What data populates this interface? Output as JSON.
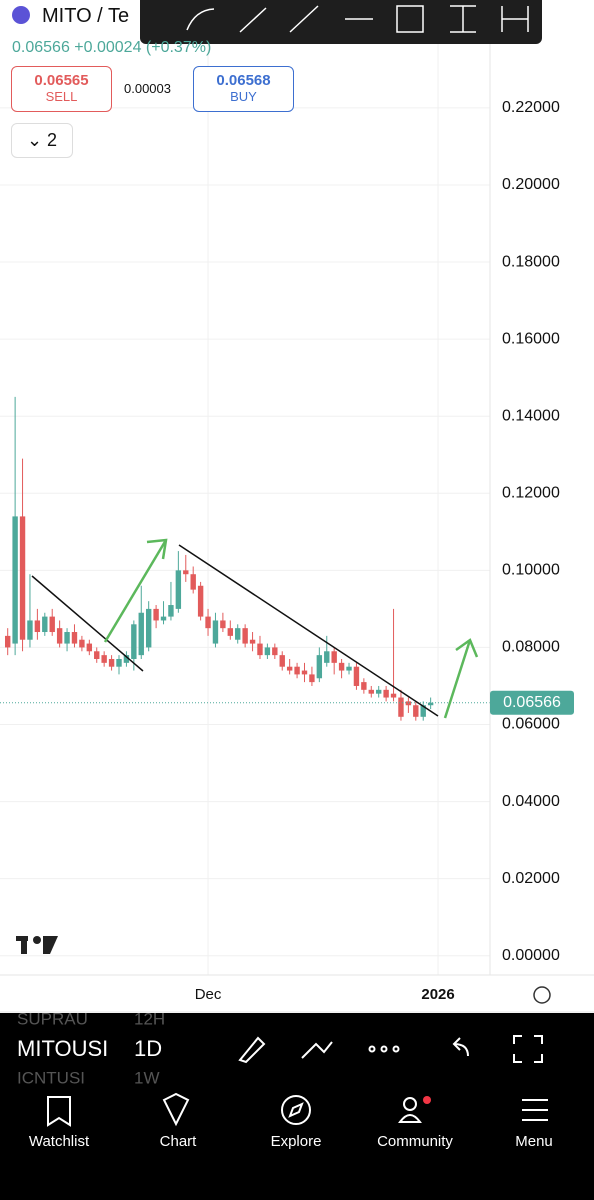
{
  "header": {
    "symbol": "MITO / Te",
    "change": "0.06566 +0.00024 (+0.37%)"
  },
  "quote": {
    "sell_price": "0.06565",
    "sell_label": "SELL",
    "spread": "0.00003",
    "buy_price": "0.06568",
    "buy_label": "BUY",
    "layout_count": "2"
  },
  "chart_data": {
    "type": "candlestick",
    "categories": [
      null,
      null,
      null,
      null,
      null,
      null,
      null,
      null,
      null,
      null,
      null,
      null,
      null,
      null,
      null,
      null,
      null,
      null,
      null,
      null,
      null,
      null,
      null,
      null,
      null,
      null,
      null,
      "Dec",
      null,
      null,
      null,
      null,
      null,
      null,
      null,
      null,
      null,
      null,
      null,
      null,
      null,
      null,
      null,
      null,
      null,
      null,
      null,
      null,
      null,
      null,
      null,
      null,
      null,
      null,
      null,
      null,
      null,
      null,
      "2026"
    ],
    "open": [
      0.083,
      0.081,
      0.114,
      0.082,
      0.087,
      0.084,
      0.088,
      0.085,
      0.081,
      0.084,
      0.082,
      0.081,
      0.079,
      0.078,
      0.077,
      0.075,
      0.076,
      0.077,
      0.078,
      0.08,
      0.09,
      0.087,
      0.088,
      0.09,
      0.1,
      0.099,
      0.096,
      0.088,
      0.081,
      0.087,
      0.085,
      0.082,
      0.085,
      0.082,
      0.081,
      0.078,
      0.08,
      0.078,
      0.075,
      0.075,
      0.074,
      0.073,
      0.072,
      0.076,
      0.079,
      0.076,
      0.074,
      0.075,
      0.071,
      0.069,
      0.068,
      0.069,
      0.068,
      0.067,
      0.066,
      0.065,
      0.062,
      0.065,
      null
    ],
    "high": [
      0.085,
      0.145,
      0.129,
      0.099,
      0.09,
      0.089,
      0.09,
      0.087,
      0.085,
      0.086,
      0.083,
      0.082,
      0.08,
      0.079,
      0.078,
      0.078,
      0.079,
      0.087,
      0.096,
      0.092,
      0.091,
      0.092,
      0.097,
      0.105,
      0.104,
      0.101,
      0.097,
      0.09,
      0.089,
      0.089,
      0.087,
      0.086,
      0.086,
      0.084,
      0.083,
      0.081,
      0.081,
      0.079,
      0.077,
      0.076,
      0.076,
      0.075,
      0.08,
      0.083,
      0.08,
      0.077,
      0.076,
      0.076,
      0.072,
      0.07,
      0.07,
      0.07,
      0.09,
      0.069,
      0.067,
      0.066,
      0.066,
      0.067,
      null
    ],
    "low": [
      0.078,
      0.078,
      0.079,
      0.08,
      0.082,
      0.083,
      0.083,
      0.08,
      0.079,
      0.08,
      0.079,
      0.078,
      0.076,
      0.075,
      0.074,
      0.073,
      0.075,
      0.074,
      0.077,
      0.079,
      0.085,
      0.086,
      0.087,
      0.089,
      0.097,
      0.094,
      0.087,
      0.083,
      0.08,
      0.084,
      0.082,
      0.081,
      0.08,
      0.079,
      0.077,
      0.077,
      0.077,
      0.074,
      0.073,
      0.072,
      0.071,
      0.07,
      0.071,
      0.075,
      0.073,
      0.072,
      0.073,
      0.069,
      0.068,
      0.067,
      0.067,
      0.066,
      0.066,
      0.061,
      0.063,
      0.061,
      0.061,
      0.064,
      null
    ],
    "close": [
      0.08,
      0.114,
      0.082,
      0.087,
      0.084,
      0.088,
      0.084,
      0.081,
      0.084,
      0.081,
      0.08,
      0.079,
      0.077,
      0.076,
      0.075,
      0.077,
      0.078,
      0.086,
      0.089,
      0.09,
      0.087,
      0.088,
      0.091,
      0.1,
      0.099,
      0.095,
      0.088,
      0.085,
      0.087,
      0.085,
      0.083,
      0.085,
      0.081,
      0.081,
      0.078,
      0.08,
      0.078,
      0.075,
      0.074,
      0.073,
      0.073,
      0.071,
      0.078,
      0.079,
      0.076,
      0.074,
      0.075,
      0.07,
      0.069,
      0.068,
      0.069,
      0.067,
      0.067,
      0.062,
      0.065,
      0.062,
      0.065,
      0.06566,
      null
    ],
    "up_color": "#4da89a",
    "down_color": "#e25b5b",
    "last_price": {
      "value": 0.06566,
      "label": "0.06566"
    },
    "ylim": [
      -0.005,
      0.248
    ],
    "yticks": [
      {
        "value": 0,
        "label": "0.00000"
      },
      {
        "value": 0.02,
        "label": "0.02000"
      },
      {
        "value": 0.04,
        "label": "0.04000"
      },
      {
        "value": 0.06,
        "label": "0.06000"
      },
      {
        "value": 0.08,
        "label": "0.08000"
      },
      {
        "value": 0.1,
        "label": "0.10000"
      },
      {
        "value": 0.12,
        "label": "0.12000"
      },
      {
        "value": 0.14,
        "label": "0.14000"
      },
      {
        "value": 0.16,
        "label": "0.16000"
      },
      {
        "value": 0.18,
        "label": "0.18000"
      },
      {
        "value": 0.2,
        "label": "0.20000"
      },
      {
        "value": 0.22,
        "label": "0.22000"
      }
    ],
    "grid": true
  },
  "symbols": [
    {
      "name": "SUPRAU",
      "interval": "12H"
    },
    {
      "name": "MITOUSI",
      "interval": "1D"
    },
    {
      "name": "ICNTUSI",
      "interval": "1W"
    }
  ],
  "nav": [
    "Watchlist",
    "Chart",
    "Explore",
    "Community",
    "Menu"
  ]
}
